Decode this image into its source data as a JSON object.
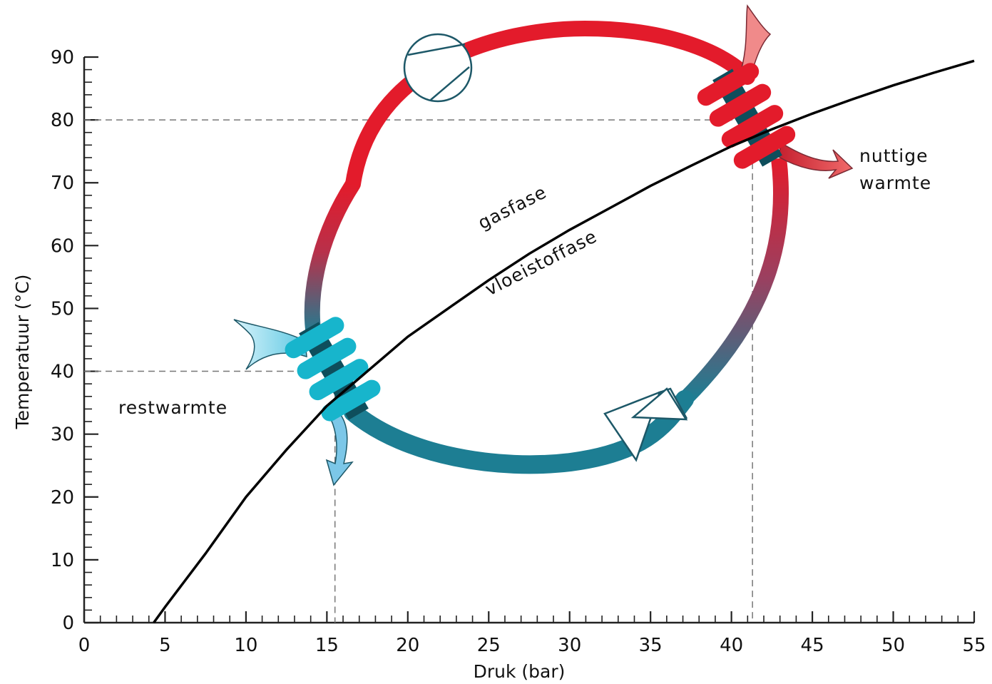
{
  "chart_data": {
    "type": "line",
    "xlabel": "Druk (bar)",
    "ylabel": "Temperatuur (°C)",
    "xlim": [
      0,
      55
    ],
    "ylim": [
      0,
      90
    ],
    "x_ticks": [
      0,
      5,
      10,
      15,
      20,
      25,
      30,
      35,
      40,
      45,
      50,
      55
    ],
    "y_ticks": [
      0,
      10,
      20,
      30,
      40,
      50,
      60,
      70,
      80,
      90
    ],
    "grid": false,
    "series": [
      {
        "x": [
          4.3,
          5,
          7.5,
          10,
          12.5,
          15,
          17.5,
          20,
          22.5,
          25,
          27.5,
          30,
          32.5,
          35,
          37.5,
          40,
          42.5,
          45,
          47.5,
          50,
          52.5,
          55
        ],
        "y": [
          0,
          2.5,
          11,
          20,
          27.5,
          34.5,
          40,
          45.5,
          50,
          54.5,
          58.7,
          62.5,
          66,
          69.5,
          72.7,
          75.8,
          78.5,
          81,
          83.3,
          85.5,
          87.5,
          89.4
        ],
        "color": "#000000"
      }
    ],
    "reference_lines": [
      {
        "x": 15.5,
        "y": 40
      },
      {
        "x": 41.3,
        "y": 80
      }
    ]
  },
  "annotations": {
    "gas_phase": "gasfase",
    "liquid_phase": "vloeistoffase",
    "useful_heat_line1": "nuttige",
    "useful_heat_line2": "warmte",
    "residual_heat": "restwarmte"
  },
  "colors": {
    "hot": "#e31b2b",
    "cold": "#1d7e93",
    "cyan": "#17b5cc",
    "dark_teal": "#0e4e5c",
    "light_blue": "#a9def0",
    "salmon": "#f08a8a"
  }
}
